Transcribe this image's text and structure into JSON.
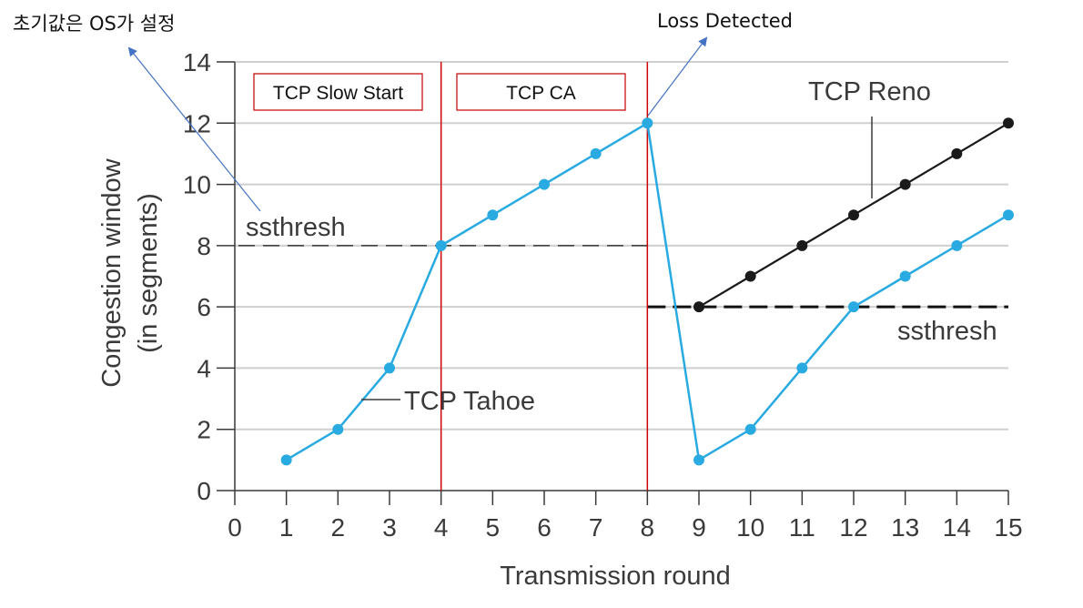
{
  "chart_data": {
    "type": "line",
    "title": "",
    "xlabel": "Transmission round",
    "ylabel": [
      "Congestion window",
      "(in segments)"
    ],
    "xlim": [
      0,
      15
    ],
    "ylim": [
      0,
      14
    ],
    "x_ticks": [
      0,
      1,
      2,
      3,
      4,
      5,
      6,
      7,
      8,
      9,
      10,
      11,
      12,
      13,
      14,
      15
    ],
    "y_ticks": [
      0,
      2,
      4,
      6,
      8,
      10,
      12,
      14
    ],
    "grid": "horizontal",
    "series": [
      {
        "name": "TCP Tahoe",
        "color": "#29aae1",
        "points": [
          [
            1,
            1
          ],
          [
            2,
            2
          ],
          [
            3,
            4
          ],
          [
            4,
            8
          ],
          [
            5,
            9
          ],
          [
            6,
            10
          ],
          [
            7,
            11
          ],
          [
            8,
            12
          ],
          [
            9,
            1
          ],
          [
            10,
            2
          ],
          [
            11,
            4
          ],
          [
            12,
            6
          ],
          [
            13,
            7
          ],
          [
            14,
            8
          ],
          [
            15,
            9
          ]
        ]
      },
      {
        "name": "TCP Reno",
        "color": "#1a1a1a",
        "points": [
          [
            9,
            6
          ],
          [
            10,
            7
          ],
          [
            11,
            8
          ],
          [
            12,
            9
          ],
          [
            13,
            10
          ],
          [
            14,
            11
          ],
          [
            15,
            12
          ]
        ]
      }
    ],
    "thresholds": [
      {
        "label": "ssthresh",
        "y": 8,
        "x_range": [
          0,
          8
        ],
        "style": "dashed-thin"
      },
      {
        "label": "ssthresh",
        "y": 6,
        "x_range": [
          8,
          15
        ],
        "style": "dashed-bold"
      }
    ],
    "phase_dividers": {
      "x": [
        4,
        8
      ],
      "color": "#cc0000"
    },
    "phase_boxes": [
      {
        "label": "TCP Slow Start"
      },
      {
        "label": "TCP CA"
      }
    ],
    "annotations": [
      {
        "text": "초기값은 OS가 설정"
      },
      {
        "text": "Loss Detected"
      }
    ]
  }
}
